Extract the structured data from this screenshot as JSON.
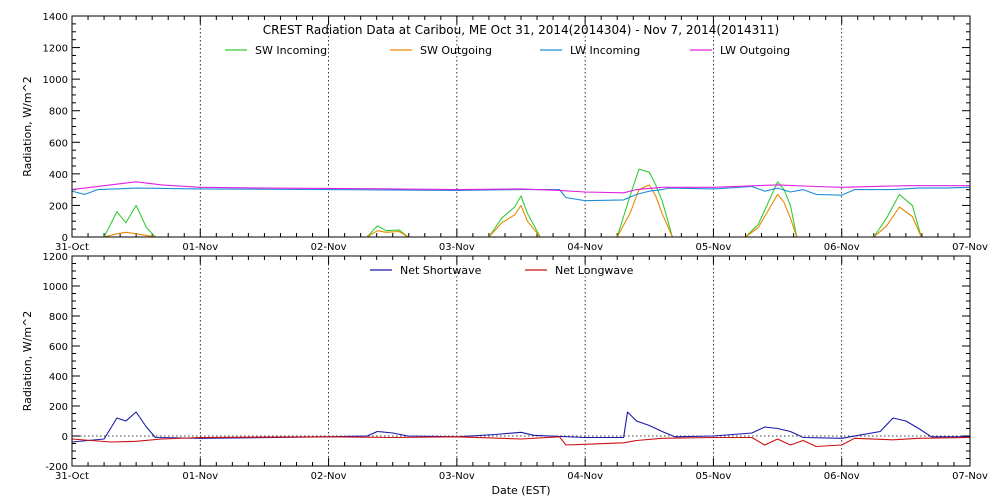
{
  "chart_data": [
    {
      "type": "line",
      "title": "CREST Radiation Data at Caribou, ME   Oct 31, 2014(2014304) - Nov  7, 2014(2014311)",
      "xlabel": "",
      "ylabel": "Radiation, W/m^2",
      "xlim": [
        0,
        7
      ],
      "ylim": [
        0,
        1400
      ],
      "yticks": [
        0,
        200,
        400,
        600,
        800,
        1000,
        1200,
        1400
      ],
      "x_ticks": [
        {
          "x": 0,
          "label": "31-Oct"
        },
        {
          "x": 1,
          "label": "01-Nov"
        },
        {
          "x": 2,
          "label": "02-Nov"
        },
        {
          "x": 3,
          "label": "03-Nov"
        },
        {
          "x": 4,
          "label": "04-Nov"
        },
        {
          "x": 5,
          "label": "05-Nov"
        },
        {
          "x": 6,
          "label": "06-Nov"
        },
        {
          "x": 7,
          "label": "07-Nov"
        }
      ],
      "grid": true,
      "legend_position": "top",
      "series": [
        {
          "name": "SW Incoming",
          "color": "#33cc33",
          "points": [
            [
              0,
              0
            ],
            [
              0.25,
              0
            ],
            [
              0.35,
              160
            ],
            [
              0.42,
              90
            ],
            [
              0.5,
              200
            ],
            [
              0.58,
              60
            ],
            [
              0.65,
              0
            ],
            [
              2.3,
              0
            ],
            [
              2.38,
              70
            ],
            [
              2.45,
              40
            ],
            [
              2.55,
              45
            ],
            [
              2.62,
              0
            ],
            [
              3.25,
              0
            ],
            [
              3.35,
              120
            ],
            [
              3.45,
              190
            ],
            [
              3.5,
              260
            ],
            [
              3.55,
              150
            ],
            [
              3.65,
              0
            ],
            [
              4.25,
              0
            ],
            [
              4.35,
              260
            ],
            [
              4.42,
              430
            ],
            [
              4.5,
              410
            ],
            [
              4.55,
              330
            ],
            [
              4.6,
              230
            ],
            [
              4.68,
              0
            ],
            [
              5.25,
              0
            ],
            [
              5.35,
              80
            ],
            [
              5.45,
              260
            ],
            [
              5.5,
              350
            ],
            [
              5.55,
              300
            ],
            [
              5.6,
              200
            ],
            [
              5.65,
              0
            ],
            [
              6.25,
              0
            ],
            [
              6.35,
              120
            ],
            [
              6.45,
              270
            ],
            [
              6.55,
              200
            ],
            [
              6.62,
              0
            ],
            [
              7,
              0
            ]
          ]
        },
        {
          "name": "SW Outgoing",
          "color": "#e68a00",
          "points": [
            [
              0,
              0
            ],
            [
              0.25,
              0
            ],
            [
              0.35,
              20
            ],
            [
              0.42,
              30
            ],
            [
              0.5,
              20
            ],
            [
              0.58,
              10
            ],
            [
              0.65,
              0
            ],
            [
              2.3,
              0
            ],
            [
              2.38,
              40
            ],
            [
              2.45,
              30
            ],
            [
              2.55,
              35
            ],
            [
              2.62,
              0
            ],
            [
              3.25,
              0
            ],
            [
              3.35,
              90
            ],
            [
              3.45,
              140
            ],
            [
              3.5,
              200
            ],
            [
              3.55,
              100
            ],
            [
              3.65,
              0
            ],
            [
              4.25,
              0
            ],
            [
              4.35,
              150
            ],
            [
              4.42,
              300
            ],
            [
              4.5,
              330
            ],
            [
              4.55,
              260
            ],
            [
              4.6,
              150
            ],
            [
              4.68,
              0
            ],
            [
              5.25,
              0
            ],
            [
              5.35,
              60
            ],
            [
              5.45,
              200
            ],
            [
              5.5,
              270
            ],
            [
              5.55,
              220
            ],
            [
              5.6,
              120
            ],
            [
              5.65,
              0
            ],
            [
              6.25,
              0
            ],
            [
              6.35,
              70
            ],
            [
              6.45,
              190
            ],
            [
              6.55,
              130
            ],
            [
              6.62,
              0
            ],
            [
              7,
              0
            ]
          ]
        },
        {
          "name": "LW Incoming",
          "color": "#1f8fd6",
          "points": [
            [
              0,
              290
            ],
            [
              0.1,
              270
            ],
            [
              0.2,
              300
            ],
            [
              0.5,
              310
            ],
            [
              1,
              305
            ],
            [
              2,
              300
            ],
            [
              3,
              295
            ],
            [
              3.5,
              300
            ],
            [
              3.8,
              300
            ],
            [
              3.85,
              250
            ],
            [
              4,
              230
            ],
            [
              4.3,
              235
            ],
            [
              4.4,
              270
            ],
            [
              4.5,
              290
            ],
            [
              4.6,
              300
            ],
            [
              4.65,
              310
            ],
            [
              5,
              305
            ],
            [
              5.3,
              320
            ],
            [
              5.4,
              290
            ],
            [
              5.5,
              310
            ],
            [
              5.6,
              285
            ],
            [
              5.7,
              300
            ],
            [
              5.8,
              270
            ],
            [
              6,
              265
            ],
            [
              6.1,
              300
            ],
            [
              6.4,
              300
            ],
            [
              6.6,
              310
            ],
            [
              6.8,
              310
            ],
            [
              7,
              315
            ]
          ]
        },
        {
          "name": "LW Outgoing",
          "color": "#e020e0",
          "points": [
            [
              0,
              300
            ],
            [
              0.3,
              330
            ],
            [
              0.5,
              350
            ],
            [
              0.7,
              330
            ],
            [
              1,
              315
            ],
            [
              1.5,
              310
            ],
            [
              2,
              308
            ],
            [
              2.5,
              305
            ],
            [
              3,
              300
            ],
            [
              3.5,
              305
            ],
            [
              3.8,
              295
            ],
            [
              4,
              285
            ],
            [
              4.3,
              280
            ],
            [
              4.4,
              300
            ],
            [
              4.6,
              315
            ],
            [
              5,
              315
            ],
            [
              5.5,
              330
            ],
            [
              5.8,
              320
            ],
            [
              6,
              315
            ],
            [
              6.5,
              325
            ],
            [
              7,
              325
            ]
          ]
        }
      ]
    },
    {
      "type": "line",
      "title": "",
      "xlabel": "Date (EST)",
      "ylabel": "Radiation, W/m^2",
      "xlim": [
        0,
        7
      ],
      "ylim": [
        -200,
        1200
      ],
      "yticks": [
        -200,
        0,
        200,
        400,
        600,
        800,
        1000,
        1200
      ],
      "x_ticks": [
        {
          "x": 0,
          "label": "31-Oct"
        },
        {
          "x": 1,
          "label": "01-Nov"
        },
        {
          "x": 2,
          "label": "02-Nov"
        },
        {
          "x": 3,
          "label": "03-Nov"
        },
        {
          "x": 4,
          "label": "04-Nov"
        },
        {
          "x": 5,
          "label": "05-Nov"
        },
        {
          "x": 6,
          "label": "06-Nov"
        },
        {
          "x": 7,
          "label": "07-Nov"
        }
      ],
      "grid": true,
      "zero_line": true,
      "legend_position": "top",
      "series": [
        {
          "name": "Net Shortwave",
          "color": "#1a1aaa",
          "points": [
            [
              0,
              -40
            ],
            [
              0.25,
              -20
            ],
            [
              0.35,
              120
            ],
            [
              0.42,
              100
            ],
            [
              0.5,
              160
            ],
            [
              0.58,
              60
            ],
            [
              0.65,
              -10
            ],
            [
              1,
              -15
            ],
            [
              2,
              -5
            ],
            [
              2.3,
              0
            ],
            [
              2.38,
              30
            ],
            [
              2.5,
              20
            ],
            [
              2.62,
              0
            ],
            [
              3,
              -5
            ],
            [
              3.3,
              10
            ],
            [
              3.5,
              25
            ],
            [
              3.6,
              5
            ],
            [
              4,
              -10
            ],
            [
              4.3,
              -10
            ],
            [
              4.33,
              160
            ],
            [
              4.4,
              100
            ],
            [
              4.5,
              70
            ],
            [
              4.6,
              30
            ],
            [
              4.7,
              -5
            ],
            [
              5,
              0
            ],
            [
              5.3,
              20
            ],
            [
              5.4,
              60
            ],
            [
              5.5,
              50
            ],
            [
              5.6,
              30
            ],
            [
              5.7,
              -10
            ],
            [
              6,
              -15
            ],
            [
              6.3,
              30
            ],
            [
              6.4,
              120
            ],
            [
              6.5,
              100
            ],
            [
              6.6,
              50
            ],
            [
              6.7,
              -5
            ],
            [
              7,
              -5
            ]
          ]
        },
        {
          "name": "Net Longwave",
          "color": "#cc1111",
          "points": [
            [
              0,
              -20
            ],
            [
              0.3,
              -40
            ],
            [
              0.5,
              -35
            ],
            [
              0.7,
              -20
            ],
            [
              1,
              -10
            ],
            [
              2,
              -5
            ],
            [
              2.5,
              -10
            ],
            [
              3,
              -5
            ],
            [
              3.5,
              -20
            ],
            [
              3.8,
              -5
            ],
            [
              3.85,
              -60
            ],
            [
              4,
              -55
            ],
            [
              4.3,
              -45
            ],
            [
              4.4,
              -30
            ],
            [
              4.6,
              -15
            ],
            [
              5,
              -10
            ],
            [
              5.3,
              -10
            ],
            [
              5.4,
              -60
            ],
            [
              5.5,
              -20
            ],
            [
              5.6,
              -60
            ],
            [
              5.7,
              -30
            ],
            [
              5.8,
              -70
            ],
            [
              6,
              -60
            ],
            [
              6.1,
              -15
            ],
            [
              6.4,
              -25
            ],
            [
              6.6,
              -15
            ],
            [
              7,
              -10
            ]
          ]
        }
      ]
    }
  ]
}
